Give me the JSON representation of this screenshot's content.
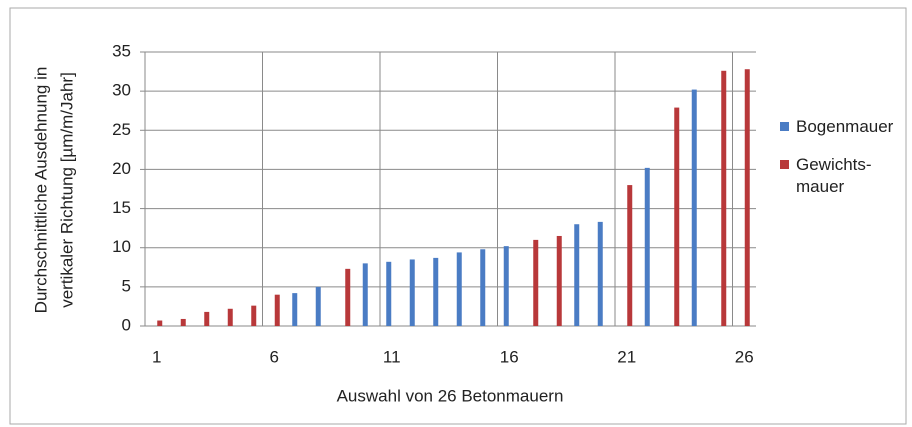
{
  "chart_data": {
    "type": "bar",
    "xlabel": "Auswahl von 26 Betonmauern",
    "ylabel": [
      "Durchschnittliche Ausdehnung in",
      "vertikaler Richtung [µm/m/Jahr]"
    ],
    "categories": [
      1,
      null,
      null,
      null,
      null,
      6,
      null,
      null,
      null,
      null,
      11,
      null,
      null,
      null,
      null,
      16,
      null,
      null,
      null,
      null,
      21,
      null,
      null,
      null,
      null,
      26
    ],
    "series": [
      {
        "name": "Bogenmauer",
        "color": "#4a7cc4",
        "values": [
          null,
          null,
          null,
          null,
          null,
          null,
          4.2,
          5.0,
          null,
          8.0,
          8.2,
          8.5,
          8.7,
          9.4,
          9.8,
          10.2,
          null,
          null,
          13.0,
          13.3,
          null,
          20.2,
          null,
          30.2,
          null,
          null
        ]
      },
      {
        "name": "Gewichts- mauer",
        "color": "#b8383a",
        "values": [
          0.7,
          0.9,
          1.8,
          2.2,
          2.6,
          4.0,
          null,
          null,
          7.3,
          null,
          null,
          null,
          null,
          null,
          null,
          null,
          11.0,
          11.5,
          null,
          null,
          18.0,
          null,
          27.9,
          null,
          32.6,
          32.8
        ]
      }
    ],
    "ylim": [
      0,
      35
    ],
    "yticks": [
      0,
      5,
      10,
      15,
      20,
      25,
      30,
      35
    ],
    "grid": true
  }
}
